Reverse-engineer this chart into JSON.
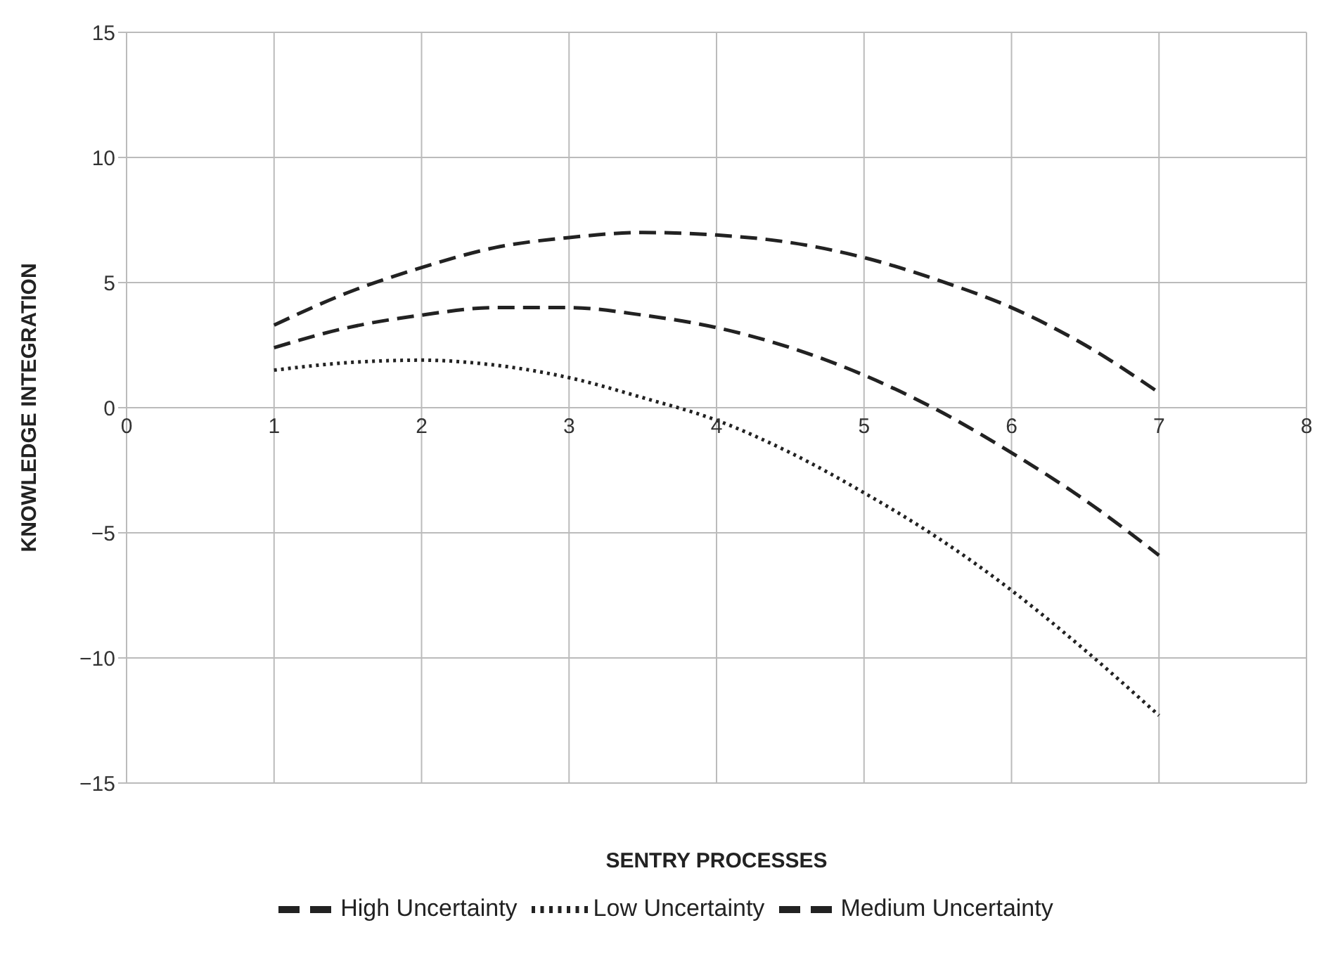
{
  "chart_data": {
    "type": "line",
    "xlabel": "SENTRY PROCESSES",
    "ylabel": "KNOWLEDGE INTEGRATION",
    "x": [
      1,
      1.5,
      2,
      2.5,
      3,
      3.5,
      4,
      4.5,
      5,
      5.5,
      6,
      6.5,
      7
    ],
    "series": [
      {
        "name": "Medium Uncertainty",
        "color": "#222222",
        "line_style": "dashed",
        "values": [
          2.4,
          3.2,
          3.7,
          4.0,
          4.0,
          3.7,
          3.2,
          2.4,
          1.3,
          -0.1,
          -1.8,
          -3.7,
          -5.9
        ]
      },
      {
        "name": "Low Uncertainty",
        "color": "#222222",
        "line_style": "dotted",
        "values": [
          1.5,
          1.8,
          1.9,
          1.7,
          1.2,
          0.4,
          -0.5,
          -1.8,
          -3.4,
          -5.2,
          -7.3,
          -9.7,
          -12.3
        ]
      },
      {
        "name": "High Uncertainty",
        "color": "#222222",
        "line_style": "dashed",
        "values": [
          3.3,
          4.6,
          5.6,
          6.4,
          6.8,
          7.0,
          6.9,
          6.6,
          6.0,
          5.1,
          4.0,
          2.5,
          0.6
        ]
      }
    ],
    "xlim": [
      0,
      8
    ],
    "xticks": [
      0,
      1,
      2,
      3,
      4,
      5,
      6,
      7,
      8
    ],
    "ylim": [
      -15,
      15
    ],
    "yticks": [
      -15,
      -10,
      -5,
      0,
      5,
      10,
      15
    ],
    "grid": true,
    "legend": "bottom",
    "marker": "none"
  }
}
